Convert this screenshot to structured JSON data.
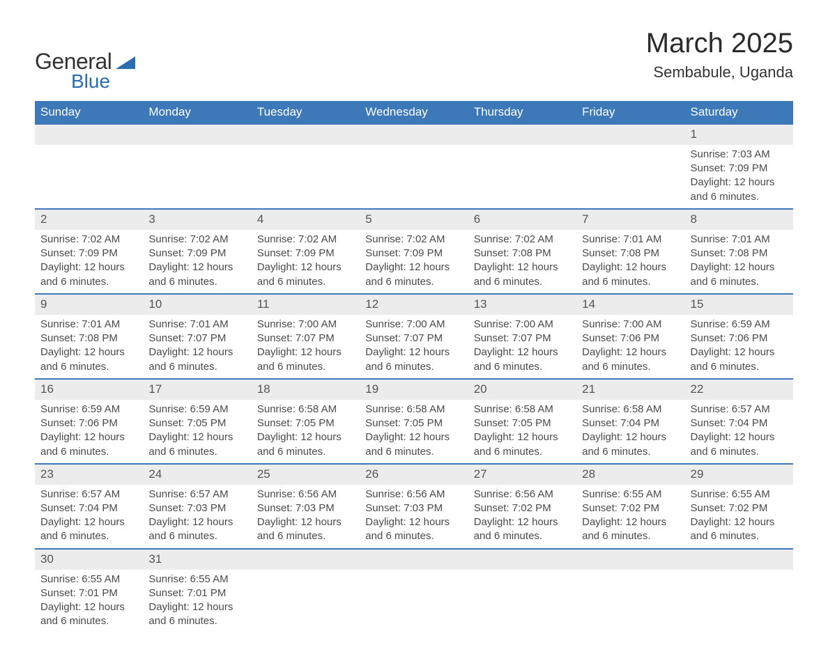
{
  "brand": {
    "name_part1": "General",
    "name_part2": "Blue",
    "color_dark": "#333333",
    "color_blue": "#2a6db0",
    "triangle_color": "#2a6db0"
  },
  "title": {
    "month": "March 2025",
    "location": "Sembabule, Uganda"
  },
  "colors": {
    "header_bg": "#3d78b8",
    "header_text": "#ffffff",
    "daynum_bg": "#ececec",
    "daynum_text": "#555555",
    "cell_text": "#4a4a4a",
    "week_border": "#3d78b8",
    "page_bg": "#ffffff"
  },
  "day_headers": [
    "Sunday",
    "Monday",
    "Tuesday",
    "Wednesday",
    "Thursday",
    "Friday",
    "Saturday"
  ],
  "weeks": [
    [
      null,
      null,
      null,
      null,
      null,
      null,
      {
        "n": "1",
        "sunrise": "7:03 AM",
        "sunset": "7:09 PM",
        "daylight": "12 hours and 6 minutes."
      }
    ],
    [
      {
        "n": "2",
        "sunrise": "7:02 AM",
        "sunset": "7:09 PM",
        "daylight": "12 hours and 6 minutes."
      },
      {
        "n": "3",
        "sunrise": "7:02 AM",
        "sunset": "7:09 PM",
        "daylight": "12 hours and 6 minutes."
      },
      {
        "n": "4",
        "sunrise": "7:02 AM",
        "sunset": "7:09 PM",
        "daylight": "12 hours and 6 minutes."
      },
      {
        "n": "5",
        "sunrise": "7:02 AM",
        "sunset": "7:09 PM",
        "daylight": "12 hours and 6 minutes."
      },
      {
        "n": "6",
        "sunrise": "7:02 AM",
        "sunset": "7:08 PM",
        "daylight": "12 hours and 6 minutes."
      },
      {
        "n": "7",
        "sunrise": "7:01 AM",
        "sunset": "7:08 PM",
        "daylight": "12 hours and 6 minutes."
      },
      {
        "n": "8",
        "sunrise": "7:01 AM",
        "sunset": "7:08 PM",
        "daylight": "12 hours and 6 minutes."
      }
    ],
    [
      {
        "n": "9",
        "sunrise": "7:01 AM",
        "sunset": "7:08 PM",
        "daylight": "12 hours and 6 minutes."
      },
      {
        "n": "10",
        "sunrise": "7:01 AM",
        "sunset": "7:07 PM",
        "daylight": "12 hours and 6 minutes."
      },
      {
        "n": "11",
        "sunrise": "7:00 AM",
        "sunset": "7:07 PM",
        "daylight": "12 hours and 6 minutes."
      },
      {
        "n": "12",
        "sunrise": "7:00 AM",
        "sunset": "7:07 PM",
        "daylight": "12 hours and 6 minutes."
      },
      {
        "n": "13",
        "sunrise": "7:00 AM",
        "sunset": "7:07 PM",
        "daylight": "12 hours and 6 minutes."
      },
      {
        "n": "14",
        "sunrise": "7:00 AM",
        "sunset": "7:06 PM",
        "daylight": "12 hours and 6 minutes."
      },
      {
        "n": "15",
        "sunrise": "6:59 AM",
        "sunset": "7:06 PM",
        "daylight": "12 hours and 6 minutes."
      }
    ],
    [
      {
        "n": "16",
        "sunrise": "6:59 AM",
        "sunset": "7:06 PM",
        "daylight": "12 hours and 6 minutes."
      },
      {
        "n": "17",
        "sunrise": "6:59 AM",
        "sunset": "7:05 PM",
        "daylight": "12 hours and 6 minutes."
      },
      {
        "n": "18",
        "sunrise": "6:58 AM",
        "sunset": "7:05 PM",
        "daylight": "12 hours and 6 minutes."
      },
      {
        "n": "19",
        "sunrise": "6:58 AM",
        "sunset": "7:05 PM",
        "daylight": "12 hours and 6 minutes."
      },
      {
        "n": "20",
        "sunrise": "6:58 AM",
        "sunset": "7:05 PM",
        "daylight": "12 hours and 6 minutes."
      },
      {
        "n": "21",
        "sunrise": "6:58 AM",
        "sunset": "7:04 PM",
        "daylight": "12 hours and 6 minutes."
      },
      {
        "n": "22",
        "sunrise": "6:57 AM",
        "sunset": "7:04 PM",
        "daylight": "12 hours and 6 minutes."
      }
    ],
    [
      {
        "n": "23",
        "sunrise": "6:57 AM",
        "sunset": "7:04 PM",
        "daylight": "12 hours and 6 minutes."
      },
      {
        "n": "24",
        "sunrise": "6:57 AM",
        "sunset": "7:03 PM",
        "daylight": "12 hours and 6 minutes."
      },
      {
        "n": "25",
        "sunrise": "6:56 AM",
        "sunset": "7:03 PM",
        "daylight": "12 hours and 6 minutes."
      },
      {
        "n": "26",
        "sunrise": "6:56 AM",
        "sunset": "7:03 PM",
        "daylight": "12 hours and 6 minutes."
      },
      {
        "n": "27",
        "sunrise": "6:56 AM",
        "sunset": "7:02 PM",
        "daylight": "12 hours and 6 minutes."
      },
      {
        "n": "28",
        "sunrise": "6:55 AM",
        "sunset": "7:02 PM",
        "daylight": "12 hours and 6 minutes."
      },
      {
        "n": "29",
        "sunrise": "6:55 AM",
        "sunset": "7:02 PM",
        "daylight": "12 hours and 6 minutes."
      }
    ],
    [
      {
        "n": "30",
        "sunrise": "6:55 AM",
        "sunset": "7:01 PM",
        "daylight": "12 hours and 6 minutes."
      },
      {
        "n": "31",
        "sunrise": "6:55 AM",
        "sunset": "7:01 PM",
        "daylight": "12 hours and 6 minutes."
      },
      null,
      null,
      null,
      null,
      null
    ]
  ],
  "labels": {
    "sunrise_prefix": "Sunrise: ",
    "sunset_prefix": "Sunset: ",
    "daylight_prefix": "Daylight: "
  }
}
